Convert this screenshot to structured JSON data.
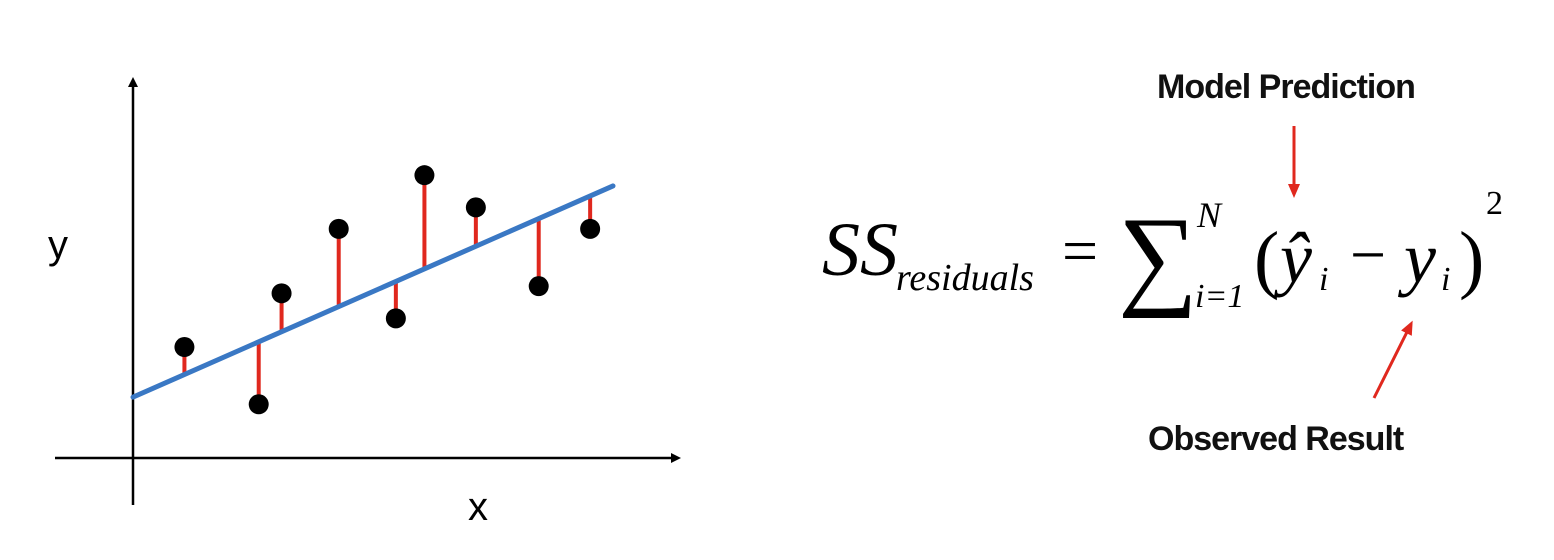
{
  "chart_data": {
    "type": "scatter",
    "xlabel": "x",
    "ylabel": "y",
    "xlim": [
      0,
      10
    ],
    "ylim": [
      0,
      10
    ],
    "grid": false,
    "series": [
      {
        "x": [
          0.9,
          2.2,
          2.6,
          3.6,
          4.6,
          5.1,
          6.0,
          7.1,
          8.0
        ],
        "y": [
          3.1,
          1.5,
          4.6,
          6.4,
          3.9,
          7.9,
          7.0,
          4.8,
          6.4
        ]
      }
    ],
    "fit_line": {
      "x": [
        0,
        8.4
      ],
      "y": [
        1.7,
        7.6
      ]
    }
  },
  "formula": {
    "lhs": "SS",
    "lhs_subscript": "residuals",
    "equals": "=",
    "sum_symbol": "∑",
    "sum_upper": "N",
    "sum_lower": "i=1",
    "open_paren": "(",
    "y_hat": "ŷ",
    "index": "i",
    "minus": "−",
    "y": "y",
    "close_paren": ")",
    "exponent": "2"
  },
  "annotations": {
    "model_prediction": "Model Prediction",
    "observed_result": "Observed Result"
  },
  "colors": {
    "fit_line": "#3a78c4",
    "residual": "#e0281e",
    "point": "#000000",
    "arrow": "#e0281e"
  }
}
